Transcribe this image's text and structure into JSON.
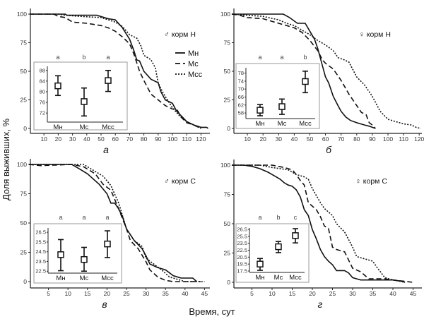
{
  "y_axis_title": "Доля выживших, %",
  "x_axis_title": "Время, сут",
  "legend": [
    {
      "label": "Мн",
      "style": "solid"
    },
    {
      "label": "Мс",
      "style": "dashed"
    },
    {
      "label": "Мсс",
      "style": "dotted"
    }
  ],
  "chart_data": [
    {
      "type": "line",
      "panel_label": "а",
      "group_label": "♂ корм Н",
      "xlim": [
        0,
        125
      ],
      "ylim": [
        0,
        100
      ],
      "xticks": [
        10,
        20,
        30,
        40,
        50,
        60,
        70,
        80,
        90,
        100,
        110,
        120
      ],
      "yticks": [
        0,
        25,
        50,
        75,
        100
      ],
      "series": [
        {
          "name": "Мн",
          "x": [
            0,
            25,
            26,
            47,
            55,
            60,
            65,
            70,
            73,
            75,
            77,
            80,
            85,
            90,
            92,
            95,
            100,
            103,
            107,
            110,
            115,
            120,
            124,
            125
          ],
          "y": [
            100,
            100,
            99,
            99,
            96,
            95,
            88,
            78,
            68,
            60,
            59,
            50,
            43,
            40,
            32,
            25,
            22,
            15,
            10,
            6,
            3,
            1,
            1,
            0
          ]
        },
        {
          "name": "Мс",
          "x": [
            0,
            17,
            20,
            25,
            30,
            40,
            50,
            55,
            60,
            65,
            70,
            73,
            77,
            80,
            85,
            90,
            95,
            100,
            103,
            106,
            110,
            115,
            120
          ],
          "y": [
            100,
            100,
            98,
            97,
            93,
            92,
            90,
            88,
            85,
            80,
            74,
            65,
            50,
            42,
            30,
            25,
            20,
            17,
            17,
            10,
            5,
            3,
            0
          ]
        },
        {
          "name": "Мсс",
          "x": [
            0,
            20,
            25,
            35,
            50,
            60,
            65,
            70,
            75,
            78,
            80,
            85,
            88,
            90,
            93,
            95,
            100,
            105,
            110,
            115,
            120
          ],
          "y": [
            100,
            100,
            99,
            98,
            97,
            93,
            89,
            82,
            79,
            72,
            64,
            60,
            53,
            40,
            32,
            28,
            18,
            11,
            6,
            3,
            0
          ]
        }
      ],
      "inset": {
        "type": "errorbar",
        "categories": [
          "Мн",
          "Мс",
          "Мсс"
        ],
        "letters": [
          "a",
          "b",
          "a"
        ],
        "yticks": [
          "72",
          "76",
          "80",
          "84",
          "88"
        ],
        "ytick_values": [
          72,
          76,
          80,
          84,
          88
        ],
        "ylim": [
          68.6,
          89
        ],
        "mean": [
          82.2,
          76.3,
          84.2
        ],
        "lower": [
          78.6,
          70.9,
          80.1
        ],
        "upper": [
          86.0,
          81.4,
          88.0
        ]
      }
    },
    {
      "type": "line",
      "panel_label": "б",
      "group_label": "♀ корм Н",
      "xlim": [
        0,
        121
      ],
      "ylim": [
        0,
        100
      ],
      "xticks": [
        10,
        20,
        30,
        40,
        50,
        60,
        70,
        80,
        90,
        100,
        110,
        120
      ],
      "yticks": [
        0,
        25,
        50,
        75,
        100
      ],
      "series": [
        {
          "name": "Мн",
          "x": [
            0,
            33,
            37,
            42,
            47,
            50,
            53,
            55,
            57,
            60,
            62,
            65,
            68,
            70,
            73,
            76,
            80,
            85,
            88,
            90,
            92
          ],
          "y": [
            100,
            100,
            97,
            92,
            92,
            85,
            78,
            70,
            60,
            45,
            40,
            28,
            20,
            15,
            10,
            7,
            5,
            3,
            2,
            1,
            0
          ]
        },
        {
          "name": "Мс",
          "x": [
            0,
            5,
            10,
            20,
            30,
            40,
            45,
            50,
            55,
            58,
            60,
            65,
            70,
            75,
            80,
            83,
            86,
            88,
            90,
            92
          ],
          "y": [
            100,
            99,
            97,
            96,
            92,
            88,
            84,
            77,
            68,
            60,
            57,
            52,
            42,
            30,
            20,
            14,
            12,
            5,
            3,
            0
          ]
        },
        {
          "name": "Мсс",
          "x": [
            0,
            10,
            20,
            30,
            35,
            40,
            45,
            50,
            55,
            60,
            65,
            68,
            72,
            75,
            80,
            85,
            90,
            95,
            100,
            105,
            110,
            115,
            118,
            121
          ],
          "y": [
            100,
            99,
            98,
            95,
            92,
            90,
            86,
            82,
            77,
            73,
            68,
            62,
            60,
            58,
            45,
            38,
            28,
            15,
            8,
            6,
            4,
            3,
            1,
            0
          ]
        }
      ],
      "inset": {
        "type": "errorbar",
        "categories": [
          "Мн",
          "Мс",
          "Мсс"
        ],
        "letters": [
          "a",
          "a",
          "b"
        ],
        "yticks": [
          "58",
          "62",
          "66",
          "70",
          "74",
          "78"
        ],
        "ytick_values": [
          58,
          62,
          66,
          70,
          74,
          78
        ],
        "ylim": [
          55.2,
          80
        ],
        "mean": [
          59.4,
          61.2,
          73.8
        ],
        "lower": [
          56.6,
          57.3,
          68.2
        ],
        "upper": [
          62.2,
          65.0,
          79.0
        ]
      }
    },
    {
      "type": "line",
      "panel_label": "в",
      "group_label": "♂ корм С",
      "xlim": [
        0,
        45
      ],
      "ylim": [
        0,
        100
      ],
      "xticks": [
        5,
        10,
        15,
        20,
        25,
        30,
        35,
        40,
        45
      ],
      "yticks": [
        0,
        25,
        50,
        75,
        100
      ],
      "series": [
        {
          "name": "Мн",
          "x": [
            0,
            11,
            13,
            15,
            18,
            20,
            21,
            22,
            23,
            24,
            25,
            27,
            29,
            30,
            31,
            33,
            35,
            37,
            39,
            42,
            43
          ],
          "y": [
            100,
            100,
            96,
            92,
            83,
            75,
            67,
            67,
            62,
            55,
            45,
            35,
            28,
            22,
            15,
            12,
            10,
            5,
            3,
            3,
            0
          ]
        },
        {
          "name": "Мс",
          "x": [
            0,
            3,
            11,
            14,
            17,
            19,
            21,
            23,
            25,
            26,
            28,
            30,
            31,
            33,
            35,
            37,
            44
          ],
          "y": [
            100,
            99,
            100,
            98,
            92,
            83,
            78,
            62,
            45,
            35,
            28,
            17,
            10,
            4,
            1,
            0,
            0
          ]
        },
        {
          "name": "Мсс",
          "x": [
            0,
            14,
            16,
            19,
            21,
            23,
            25,
            27,
            29,
            30,
            32,
            34,
            36,
            38,
            40,
            45
          ],
          "y": [
            100,
            100,
            96,
            90,
            82,
            67,
            45,
            35,
            30,
            20,
            15,
            10,
            4,
            2,
            0,
            0
          ]
        }
      ],
      "inset": {
        "type": "errorbar",
        "categories": [
          "Мн",
          "Мс",
          "Мсс"
        ],
        "letters": [
          "a",
          "a",
          "a"
        ],
        "yticks": [
          "22.5",
          "23.5",
          "24.5",
          "25.5",
          "26.5"
        ],
        "ytick_values": [
          22.5,
          23.5,
          24.5,
          25.5,
          26.5
        ],
        "ylim": [
          22.3,
          26.8
        ],
        "mean": [
          24.2,
          23.7,
          25.3
        ],
        "lower": [
          22.55,
          22.5,
          23.9
        ],
        "upper": [
          25.75,
          24.95,
          26.65
        ]
      }
    },
    {
      "type": "line",
      "panel_label": "г",
      "group_label": "♀ корм С",
      "xlim": [
        0,
        45
      ],
      "ylim": [
        0,
        100
      ],
      "xticks": [
        5,
        10,
        15,
        20,
        25,
        30,
        35,
        40,
        45
      ],
      "yticks": [
        0,
        25,
        50,
        75,
        100
      ],
      "series": [
        {
          "name": "Мн",
          "x": [
            0,
            3,
            5,
            7,
            9,
            11,
            12,
            13,
            14,
            15,
            16,
            17,
            18,
            19,
            20,
            21,
            22,
            23,
            24,
            25,
            26,
            28,
            29,
            30,
            32,
            40,
            42,
            43
          ],
          "y": [
            100,
            100,
            99,
            97,
            94,
            90,
            88,
            85,
            83,
            82,
            79,
            73,
            62,
            57,
            45,
            37,
            28,
            22,
            18,
            15,
            10,
            10,
            8,
            4,
            2,
            2,
            1,
            0
          ]
        },
        {
          "name": "Мс",
          "x": [
            0,
            10,
            13,
            15,
            16,
            17,
            18,
            19,
            21,
            22,
            23,
            24,
            25,
            26,
            28,
            30,
            32,
            34,
            38,
            40,
            45
          ],
          "y": [
            100,
            100,
            98,
            96,
            92,
            87,
            83,
            68,
            62,
            56,
            48,
            46,
            30,
            28,
            26,
            12,
            9,
            3,
            3,
            2,
            0
          ]
        },
        {
          "name": "Мсс",
          "x": [
            0,
            7,
            10,
            14,
            16,
            18,
            19,
            20,
            22,
            23,
            25,
            26,
            28,
            30,
            31,
            33,
            35,
            36,
            38,
            40,
            43
          ],
          "y": [
            100,
            100,
            98,
            96,
            92,
            90,
            88,
            80,
            68,
            63,
            57,
            50,
            43,
            30,
            22,
            20,
            18,
            13,
            4,
            2,
            0
          ]
        }
      ],
      "inset": {
        "type": "errorbar",
        "categories": [
          "Мн",
          "Мс",
          "Мсс"
        ],
        "letters": [
          "a",
          "b",
          "c"
        ],
        "yticks": [
          "17.5",
          "19.5",
          "20.5",
          "22.5",
          "23.5",
          "25.5",
          "26.5"
        ],
        "ytick_values": [
          17.5,
          19.5,
          20.5,
          22.5,
          23.5,
          25.5,
          26.5
        ],
        "ylim": [
          17.3,
          26.7
        ],
        "mean": [
          19.5,
          23.0,
          25.6
        ],
        "lower": [
          17.7,
          21.8,
          23.6
        ],
        "upper": [
          20.3,
          24.0,
          26.6
        ]
      }
    }
  ]
}
